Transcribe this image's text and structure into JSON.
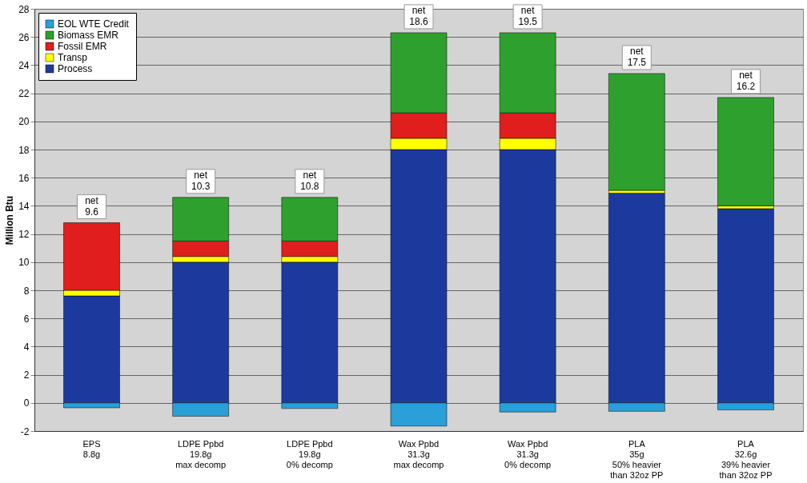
{
  "chart_data": {
    "type": "bar",
    "stacked": true,
    "ylabel": "Million Btu",
    "categories": [
      "EPS\n8.8g",
      "LDPE Ppbd\n19.8g\nmax decomp",
      "LDPE Ppbd\n19.8g\n0% decomp",
      "Wax Ppbd\n31.3g\nmax decomp",
      "Wax Ppbd\n31.3g\n0% decomp",
      "PLA\n35g\n50% heavier\nthan 32oz PP",
      "PLA\n32.6g\n39% heavier\nthan 32oz PP"
    ],
    "series": [
      {
        "name": "Process",
        "color": "#1c3a9e",
        "values": [
          7.6,
          10.0,
          10.0,
          18.0,
          18.0,
          14.9,
          13.8
        ]
      },
      {
        "name": "Transp",
        "color": "#ffff00",
        "values": [
          0.4,
          0.4,
          0.4,
          0.8,
          0.8,
          0.2,
          0.2
        ]
      },
      {
        "name": "Fossil EMR",
        "color": "#e01e1e",
        "values": [
          4.8,
          1.1,
          1.1,
          1.8,
          1.8,
          null,
          null
        ]
      },
      {
        "name": "Biomass EMR",
        "color": "#2ea02e",
        "values": [
          null,
          3.1,
          3.1,
          5.7,
          5.7,
          8.3,
          7.7
        ]
      },
      {
        "name": "EOL WTE Credit",
        "color": "#2a9fd8",
        "values": [
          -0.35,
          -0.95,
          -0.4,
          -1.65,
          -0.65,
          -0.6,
          -0.5
        ]
      }
    ],
    "ylim": [
      -2,
      28
    ],
    "yticks": [
      -2,
      0,
      2,
      4,
      6,
      8,
      10,
      12,
      14,
      16,
      18,
      20,
      22,
      24,
      26,
      28
    ],
    "grid": "y",
    "legend": "top left",
    "annotations": [
      {
        "text": "net\n9.6",
        "x": "EPS\n8.8g",
        "y": 12.8
      },
      {
        "text": "net\n10.3",
        "x": "LDPE Ppbd\n19.8g\nmax decomp",
        "y": 14.6
      },
      {
        "text": "net\n10.8",
        "x": "LDPE Ppbd\n19.8g\n0% decomp",
        "y": 14.6
      },
      {
        "text": "net\n18.6",
        "x": "Wax Ppbd\n31.3g\nmax decomp",
        "y": 26.3
      },
      {
        "text": "net\n19.5",
        "x": "Wax Ppbd\n31.3g\n0% decomp",
        "y": 26.3
      },
      {
        "text": "net\n17.5",
        "x": "PLA\n35g\n50% heavier\nthan 32oz PP",
        "y": 23.4
      },
      {
        "text": "net\n16.2",
        "x": "PLA\n32.6g\n39% heavier\nthan 32oz PP",
        "y": 21.7
      }
    ]
  }
}
